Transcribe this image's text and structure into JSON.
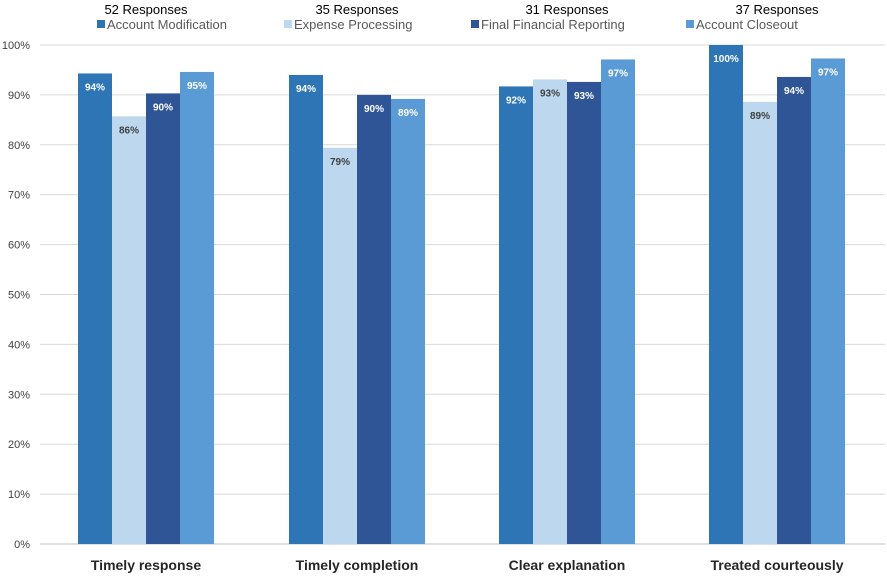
{
  "chart_data": {
    "type": "bar",
    "categories": [
      "Timely response",
      "Timely completion",
      "Clear explanation",
      "Treated courteously"
    ],
    "responses": [
      "52 Responses",
      "35 Responses",
      "31 Responses",
      "37 Responses"
    ],
    "series": [
      {
        "name": "Account Modification",
        "color": "#2e75b6",
        "label_color": "#ffffff",
        "values": [
          94.3,
          94.0,
          91.7,
          100
        ],
        "labels": [
          "94%",
          "94%",
          "92%",
          "100%"
        ]
      },
      {
        "name": "Expense Processing",
        "color": "#bdd7ee",
        "label_color": "#404040",
        "values": [
          85.7,
          79.4,
          93.1,
          88.6
        ],
        "labels": [
          "86%",
          "79%",
          "93%",
          "89%"
        ]
      },
      {
        "name": "Final Financial Reporting",
        "color": "#2f5597",
        "label_color": "#ffffff",
        "values": [
          90.3,
          90.0,
          92.6,
          93.6
        ],
        "labels": [
          "90%",
          "90%",
          "93%",
          "94%"
        ]
      },
      {
        "name": "Account Closeout",
        "color": "#5b9bd5",
        "label_color": "#ffffff",
        "values": [
          94.6,
          89.2,
          97.1,
          97.3
        ],
        "labels": [
          "95%",
          "89%",
          "97%",
          "97%"
        ]
      }
    ],
    "y_ticks": [
      "0%",
      "10%",
      "20%",
      "30%",
      "40%",
      "50%",
      "60%",
      "70%",
      "80%",
      "90%",
      "100%"
    ],
    "ylim": [
      0,
      100
    ],
    "grid": true,
    "legend_position": "top"
  }
}
